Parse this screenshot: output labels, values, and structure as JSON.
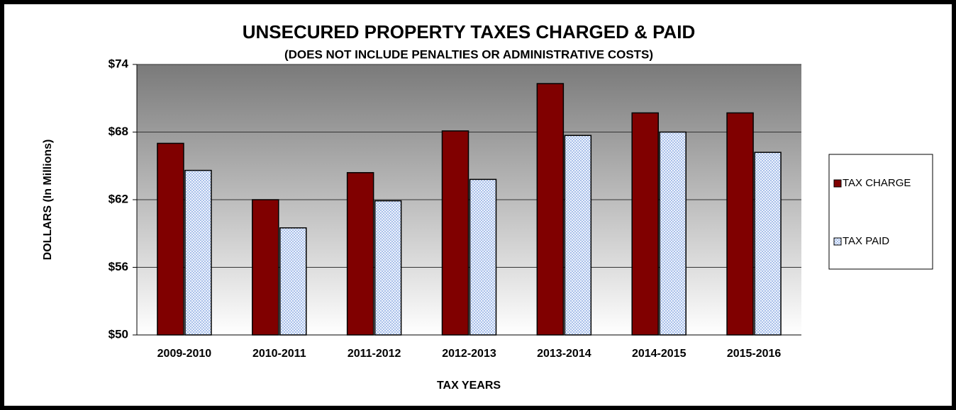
{
  "chart_data": {
    "type": "bar",
    "title": "UNSECURED PROPERTY TAXES CHARGED & PAID",
    "subtitle": "(DOES NOT INCLUDE PENALTIES OR ADMINISTRATIVE COSTS)",
    "x_label": "TAX YEARS",
    "y_label": "DOLLARS (In Millions)",
    "categories": [
      "2009-2010",
      "2010-2011",
      "2011-2012",
      "2012-2013",
      "2013-2014",
      "2014-2015",
      "2015-2016"
    ],
    "series": [
      {
        "name": "TAX CHARGE",
        "color": "#800000",
        "values": [
          67.0,
          62.0,
          64.4,
          68.1,
          72.3,
          69.7,
          69.7
        ]
      },
      {
        "name": "TAX PAID",
        "color": "#c8d8f4",
        "values": [
          64.6,
          59.5,
          61.9,
          63.8,
          67.7,
          68.0,
          66.2
        ]
      }
    ],
    "ylim": [
      50,
      74
    ],
    "yticks": [
      {
        "value": 50,
        "label": "$50"
      },
      {
        "value": 56,
        "label": "$56"
      },
      {
        "value": 62,
        "label": "$62"
      },
      {
        "value": 68,
        "label": "$68"
      },
      {
        "value": 74,
        "label": "$74"
      }
    ],
    "grid": true,
    "legend": "right"
  }
}
